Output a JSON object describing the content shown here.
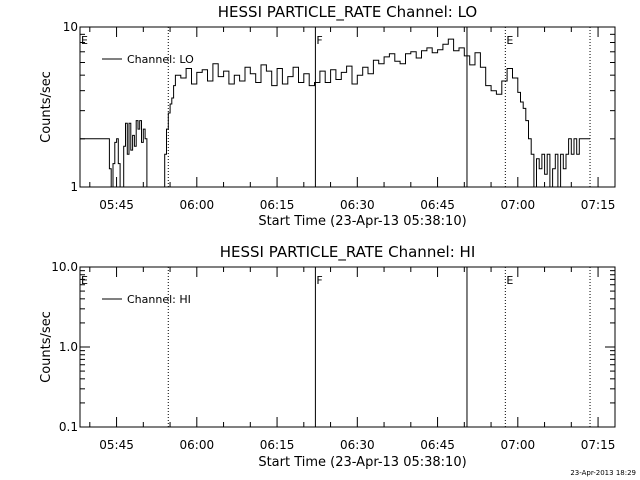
{
  "footer": {
    "stamp": "23-Apr-2013 18:29"
  },
  "chart_data": [
    {
      "type": "line",
      "title": "HESSI PARTICLE_RATE Channel: LO",
      "xlabel": "Start Time (23-Apr-13 05:38:10)",
      "ylabel": "Counts/sec",
      "yscale": "log",
      "ylim": [
        1,
        10
      ],
      "xlim": [
        "05:38:10",
        "07:18:10"
      ],
      "y_ticks": [
        "1",
        "10"
      ],
      "x_ticks": [
        "05:45",
        "06:00",
        "06:15",
        "06:30",
        "06:45",
        "07:00",
        "07:15"
      ],
      "legend": {
        "placement": "top-left",
        "entries": [
          "Channel: LO"
        ]
      },
      "markers": [
        {
          "label": "E",
          "time": "05:38:10",
          "style": "none"
        },
        {
          "label": "",
          "time": "05:54:40",
          "style": "dotted"
        },
        {
          "label": "F",
          "time": "06:22:10",
          "style": "solid"
        },
        {
          "label": "",
          "time": "06:50:30",
          "style": "solid"
        },
        {
          "label": "E",
          "time": "06:57:40",
          "style": "dotted"
        },
        {
          "label": "",
          "time": "07:13:30",
          "style": "dotted"
        }
      ],
      "series": [
        {
          "name": "Channel: LO",
          "x": [
            "05:38:10",
            "05:43:00",
            "05:43:20",
            "05:43:40",
            "05:44:00",
            "05:44:20",
            "05:44:40",
            "05:45:00",
            "05:45:20",
            "05:45:40",
            "05:46:00",
            "05:46:20",
            "05:46:40",
            "05:47:00",
            "05:47:20",
            "05:47:40",
            "05:48:00",
            "05:48:20",
            "05:48:40",
            "05:49:00",
            "05:49:20",
            "05:49:40",
            "05:50:00",
            "05:50:20",
            "05:50:40",
            "05:51:00",
            "05:51:20",
            "05:51:40",
            "05:52:00",
            "05:52:20",
            "05:52:40",
            "05:53:00",
            "05:53:20",
            "05:53:40",
            "05:54:00",
            "05:54:20",
            "05:54:40",
            "05:55:00",
            "05:55:20",
            "05:55:40",
            "05:56:00",
            "05:57:00",
            "05:58:00",
            "05:59:00",
            "06:00:00",
            "06:01:00",
            "06:02:00",
            "06:03:00",
            "06:04:00",
            "06:05:00",
            "06:06:00",
            "06:07:00",
            "06:08:00",
            "06:09:00",
            "06:10:00",
            "06:11:00",
            "06:12:00",
            "06:13:00",
            "06:14:00",
            "06:15:00",
            "06:16:00",
            "06:17:00",
            "06:18:00",
            "06:19:00",
            "06:20:00",
            "06:21:00",
            "06:22:00",
            "06:23:00",
            "06:24:00",
            "06:25:00",
            "06:26:00",
            "06:27:00",
            "06:28:00",
            "06:29:00",
            "06:30:00",
            "06:31:00",
            "06:32:00",
            "06:33:00",
            "06:34:00",
            "06:35:00",
            "06:36:00",
            "06:37:00",
            "06:38:00",
            "06:39:00",
            "06:40:00",
            "06:41:00",
            "06:42:00",
            "06:43:00",
            "06:44:00",
            "06:45:00",
            "06:46:00",
            "06:47:00",
            "06:48:00",
            "06:49:00",
            "06:50:00",
            "06:51:00",
            "06:52:00",
            "06:53:00",
            "06:54:00",
            "06:55:00",
            "06:56:00",
            "06:57:00",
            "06:58:00",
            "06:59:00",
            "07:00:00",
            "07:00:30",
            "07:01:00",
            "07:01:30",
            "07:02:00",
            "07:02:30",
            "07:03:00",
            "07:03:30",
            "07:04:00",
            "07:04:30",
            "07:05:00",
            "07:05:30",
            "07:06:00",
            "07:06:30",
            "07:07:00",
            "07:07:30",
            "07:08:00",
            "07:08:30",
            "07:09:00",
            "07:09:30",
            "07:10:00",
            "07:10:30",
            "07:11:00",
            "07:11:30",
            "07:12:00",
            "07:12:30",
            "07:13:30"
          ],
          "values": [
            2,
            2,
            2,
            1.3,
            1,
            1.4,
            1.9,
            2,
            1.4,
            1,
            1,
            1.8,
            2.5,
            1.6,
            2.5,
            1.7,
            2.1,
            1.8,
            2.6,
            2.3,
            2.6,
            1.9,
            2.3,
            2,
            1,
            1,
            1,
            1,
            1,
            1,
            1,
            1,
            1,
            1,
            1.6,
            2.3,
            2.9,
            3.3,
            3.6,
            4.3,
            5,
            4.8,
            5.5,
            4.4,
            5.2,
            5.4,
            4.6,
            5.9,
            4.9,
            5.3,
            4.4,
            5,
            4.6,
            5.6,
            5.1,
            4.5,
            5.8,
            5.3,
            4.3,
            5.5,
            4.4,
            4.9,
            5.6,
            4.5,
            5.1,
            4.3,
            4.5,
            5.3,
            4.5,
            5.4,
            4.7,
            5.2,
            5.7,
            4.4,
            5,
            5.6,
            5.1,
            6.2,
            5.9,
            6.5,
            6.8,
            6.1,
            5.9,
            6.8,
            7,
            6.4,
            7.1,
            7.4,
            6.9,
            7.2,
            7.8,
            8.4,
            7.1,
            7.4,
            6.6,
            5.8,
            6.9,
            5.6,
            4.3,
            4,
            3.8,
            4.6,
            5.5,
            4.8,
            3.9,
            3.4,
            3.1,
            2.6,
            2,
            1.6,
            1,
            1.5,
            1.3,
            1.6,
            1.2,
            1.6,
            1,
            1.3,
            1.6,
            1,
            1.6,
            1.3,
            1.6,
            2,
            1.6,
            2,
            1.6,
            2,
            2,
            2,
            2
          ]
        }
      ]
    },
    {
      "type": "line",
      "title": "HESSI PARTICLE_RATE Channel: HI",
      "xlabel": "Start Time (23-Apr-13 05:38:10)",
      "ylabel": "Counts/sec",
      "yscale": "log",
      "ylim": [
        0.1,
        10
      ],
      "xlim": [
        "05:38:10",
        "07:18:10"
      ],
      "y_ticks": [
        "0.1",
        "1.0",
        "10.0"
      ],
      "x_ticks": [
        "05:45",
        "06:00",
        "06:15",
        "06:30",
        "06:45",
        "07:00",
        "07:15"
      ],
      "legend": {
        "placement": "top-left",
        "entries": [
          "Channel: HI"
        ]
      },
      "markers": [
        {
          "label": "E",
          "time": "05:38:10",
          "style": "none"
        },
        {
          "label": "",
          "time": "05:54:40",
          "style": "dotted"
        },
        {
          "label": "F",
          "time": "06:22:10",
          "style": "solid"
        },
        {
          "label": "",
          "time": "06:50:30",
          "style": "solid"
        },
        {
          "label": "E",
          "time": "06:57:40",
          "style": "dotted"
        },
        {
          "label": "",
          "time": "07:13:30",
          "style": "dotted"
        }
      ],
      "series": [
        {
          "name": "Channel: HI",
          "x": [],
          "values": []
        }
      ]
    }
  ]
}
